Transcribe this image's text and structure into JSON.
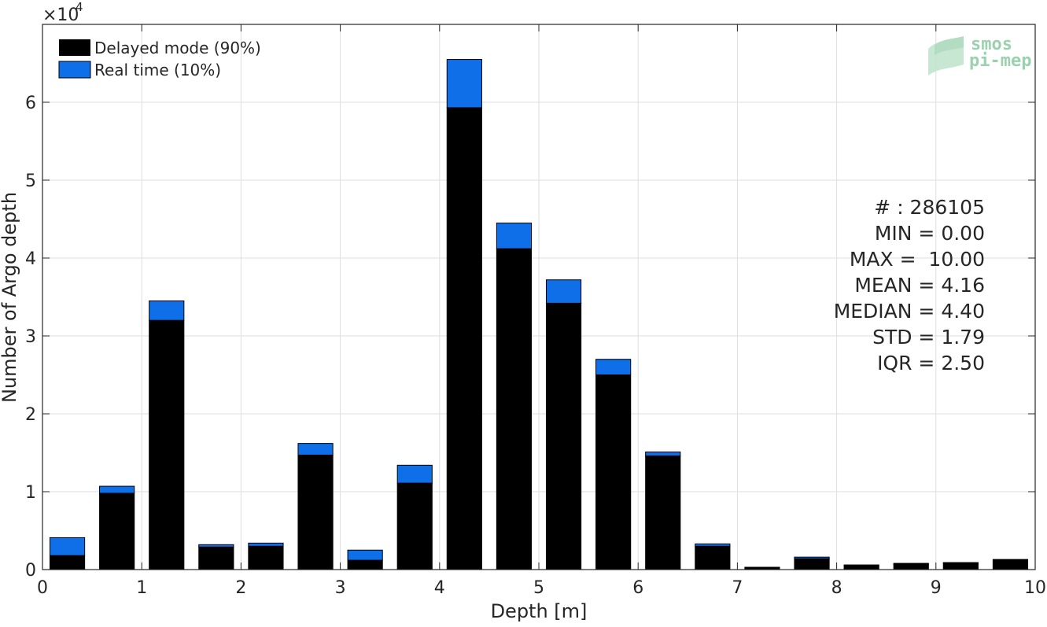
{
  "chart_data": {
    "type": "bar",
    "stacked": true,
    "xlabel": "Depth [m]",
    "ylabel": "Number of Argo depth",
    "y_exponent_label": "×10",
    "y_exponent_power": "4",
    "xlim": [
      0,
      10
    ],
    "ylim": [
      0,
      70000
    ],
    "x_ticks": [
      "0",
      "1",
      "2",
      "3",
      "4",
      "5",
      "6",
      "7",
      "8",
      "9",
      "10"
    ],
    "y_ticks": [
      "0",
      "1",
      "2",
      "3",
      "4",
      "5",
      "6"
    ],
    "grid": true,
    "bin_width": 0.5,
    "bin_centers": [
      0.25,
      0.75,
      1.25,
      1.75,
      2.25,
      2.75,
      3.25,
      3.75,
      4.25,
      4.75,
      5.25,
      5.75,
      6.25,
      6.75,
      7.25,
      7.75,
      8.25,
      8.75,
      9.25,
      9.75
    ],
    "series": [
      {
        "name": "Delayed mode (90%)",
        "color": "#000000",
        "values": [
          1800,
          9800,
          32000,
          2900,
          3000,
          14700,
          1200,
          11100,
          59300,
          41200,
          34200,
          25000,
          14600,
          3000,
          300,
          1400,
          600,
          700,
          800,
          1300
        ]
      },
      {
        "name": "Real time (10%)",
        "color": "#0f6fe8",
        "values": [
          2300,
          900,
          2500,
          300,
          400,
          1500,
          1300,
          2300,
          6200,
          3300,
          3000,
          2000,
          500,
          300,
          0,
          200,
          0,
          100,
          100,
          0
        ]
      }
    ],
    "legend_position": "top-left",
    "stats": [
      "# : 286105",
      "MIN = 0.00",
      "MAX =  10.00",
      "MEAN = 4.16",
      "MEDIAN = 4.40",
      "STD = 1.79",
      "IQR = 2.50"
    ],
    "logo_lines": [
      "smos",
      "pi-mep"
    ]
  }
}
